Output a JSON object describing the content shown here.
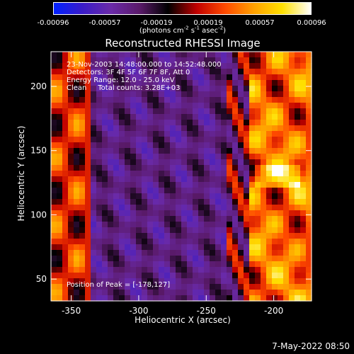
{
  "chart_data": {
    "type": "heatmap",
    "title": "Reconstructed RHESSI Image",
    "xlabel": "Heliocentric X (arcsec)",
    "ylabel": "Heliocentric Y (arcsec)",
    "xlim": [
      -365,
      -172
    ],
    "ylim": [
      33,
      227
    ],
    "x_ticks": [
      -350,
      -300,
      -250,
      -200
    ],
    "y_ticks": [
      50,
      100,
      150,
      200
    ],
    "colorbar": {
      "ticks": [
        -0.00096,
        -0.00057,
        -0.00019,
        0.00019,
        0.00057,
        0.00096
      ],
      "tick_labels": [
        "-0.00096",
        "-0.00057",
        "-0.00019",
        "0.00019",
        "0.00057",
        "0.00096"
      ],
      "unit_label": "(photons cm-2 s-1 asec-2)",
      "unit_parts": {
        "a": "(photons cm",
        "b": "-2",
        "c": " s",
        "d": "-1",
        "e": " asec",
        "f": "-2",
        "g": ")"
      },
      "colors": [
        "#0020ff",
        "#3a1cc8",
        "#6a2aa8",
        "#5a1a6a",
        "#000000",
        "#c00000",
        "#ff4a00",
        "#ffa000",
        "#ffe000",
        "#ffffff"
      ]
    },
    "annotations": [
      "23-Nov-2003 14:48:00.000 to 14:52:48.000",
      "Detectors: 3F 4F 5F 6F 7F 8F, Att 0",
      "Energy Range: 12.0 - 25.0 keV",
      "Clean     Total counts: 3.28E+03"
    ],
    "peak_label": "Position of Peak = [-178,127]",
    "peak": [
      -178,
      127
    ]
  },
  "footer": {
    "date": "7-May-2022 08:50"
  }
}
